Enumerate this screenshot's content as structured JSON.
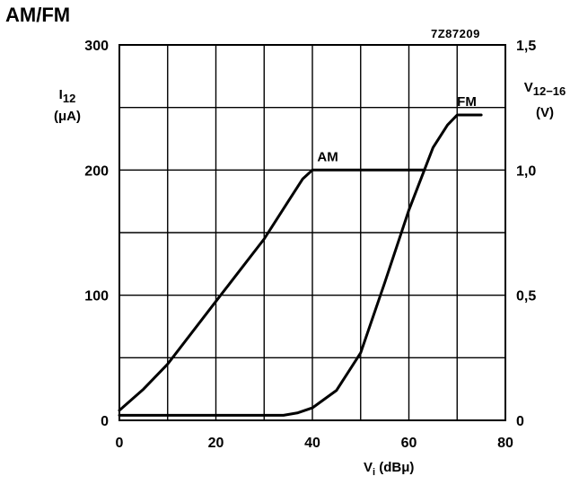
{
  "title": "AM/FM",
  "figure_code": "7Z87209",
  "left_axis": {
    "symbol": "I",
    "subscript": "12",
    "unit": "(μA)"
  },
  "right_axis": {
    "symbol": "V",
    "subscript": "12−16",
    "unit": "(V)"
  },
  "x_axis": {
    "symbol": "V",
    "subscript": "i",
    "unit": "(dBμ)"
  },
  "chart_data": {
    "type": "line",
    "x_ticks": [
      "0",
      "20",
      "40",
      "60",
      "80"
    ],
    "y_left_ticks": [
      "0",
      "100",
      "200",
      "300"
    ],
    "y_right_ticks": [
      "0",
      "0,5",
      "1,0",
      "1,5"
    ],
    "xlim": [
      0,
      80
    ],
    "ylim_left": [
      0,
      300
    ],
    "ylim_right": [
      0,
      1.5
    ],
    "grid": true,
    "series": [
      {
        "name": "AM",
        "axis": "left",
        "points": [
          [
            0,
            8
          ],
          [
            5,
            25
          ],
          [
            10,
            45
          ],
          [
            20,
            95
          ],
          [
            30,
            145
          ],
          [
            35,
            175
          ],
          [
            38,
            193
          ],
          [
            40,
            200
          ],
          [
            45,
            200
          ],
          [
            55,
            200
          ],
          [
            63,
            200
          ]
        ]
      },
      {
        "name": "FM",
        "axis": "right",
        "points": [
          [
            0,
            0.02
          ],
          [
            20,
            0.02
          ],
          [
            34,
            0.02
          ],
          [
            37,
            0.03
          ],
          [
            40,
            0.05
          ],
          [
            45,
            0.12
          ],
          [
            50,
            0.27
          ],
          [
            55,
            0.55
          ],
          [
            60,
            0.84
          ],
          [
            65,
            1.09
          ],
          [
            68,
            1.18
          ],
          [
            70,
            1.22
          ],
          [
            75,
            1.22
          ]
        ]
      }
    ]
  }
}
